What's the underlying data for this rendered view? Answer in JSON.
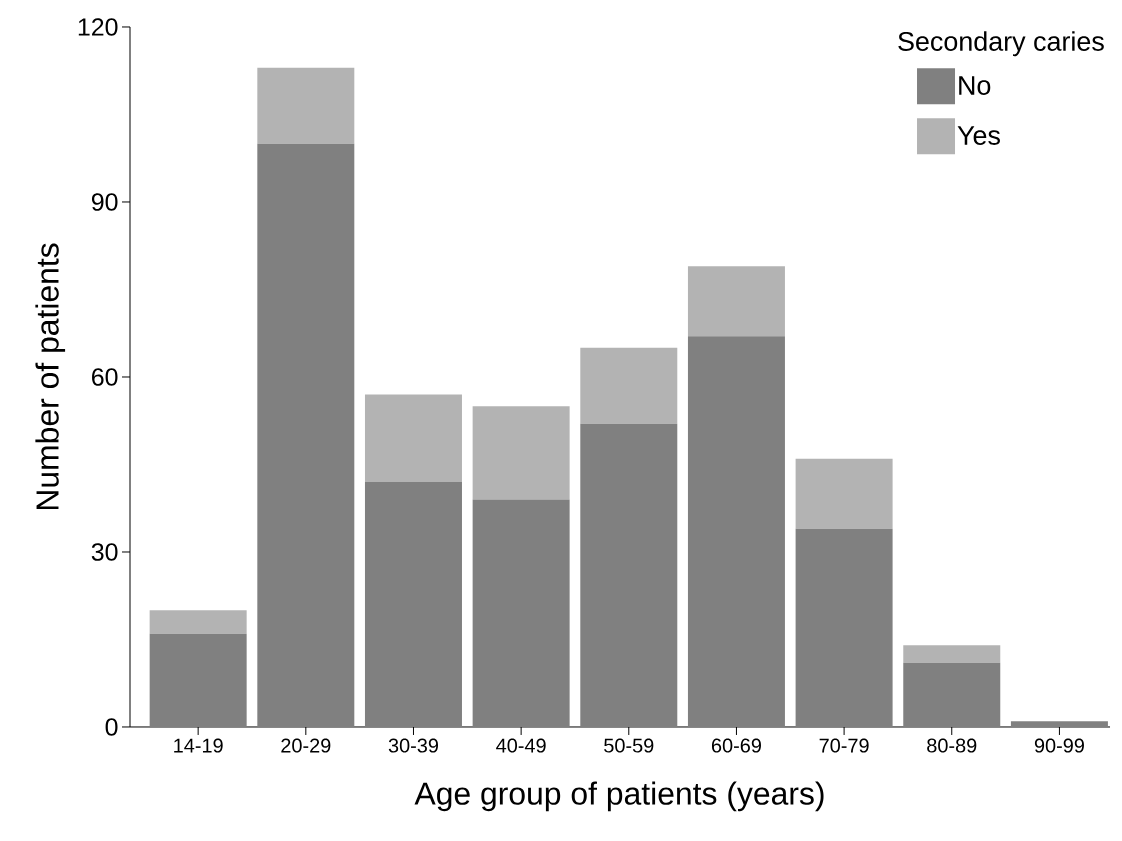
{
  "chart_data": {
    "type": "bar",
    "stacked": true,
    "xlabel": "Age group of patients (years)",
    "ylabel": "Number of patients",
    "legend_title": "Secondary caries",
    "categories": [
      "14-19",
      "20-29",
      "30-39",
      "40-49",
      "50-59",
      "60-69",
      "70-79",
      "80-89",
      "90-99"
    ],
    "series": [
      {
        "name": "No",
        "color": "#808080",
        "values": [
          16,
          100,
          42,
          39,
          52,
          67,
          34,
          11,
          1
        ]
      },
      {
        "name": "Yes",
        "color": "#b3b3b3",
        "values": [
          4,
          13,
          15,
          16,
          13,
          12,
          12,
          3,
          0
        ]
      }
    ],
    "ylim": [
      0,
      120
    ],
    "yticks": [
      0,
      30,
      60,
      90,
      120
    ],
    "legend": "top right",
    "grid": false
  }
}
